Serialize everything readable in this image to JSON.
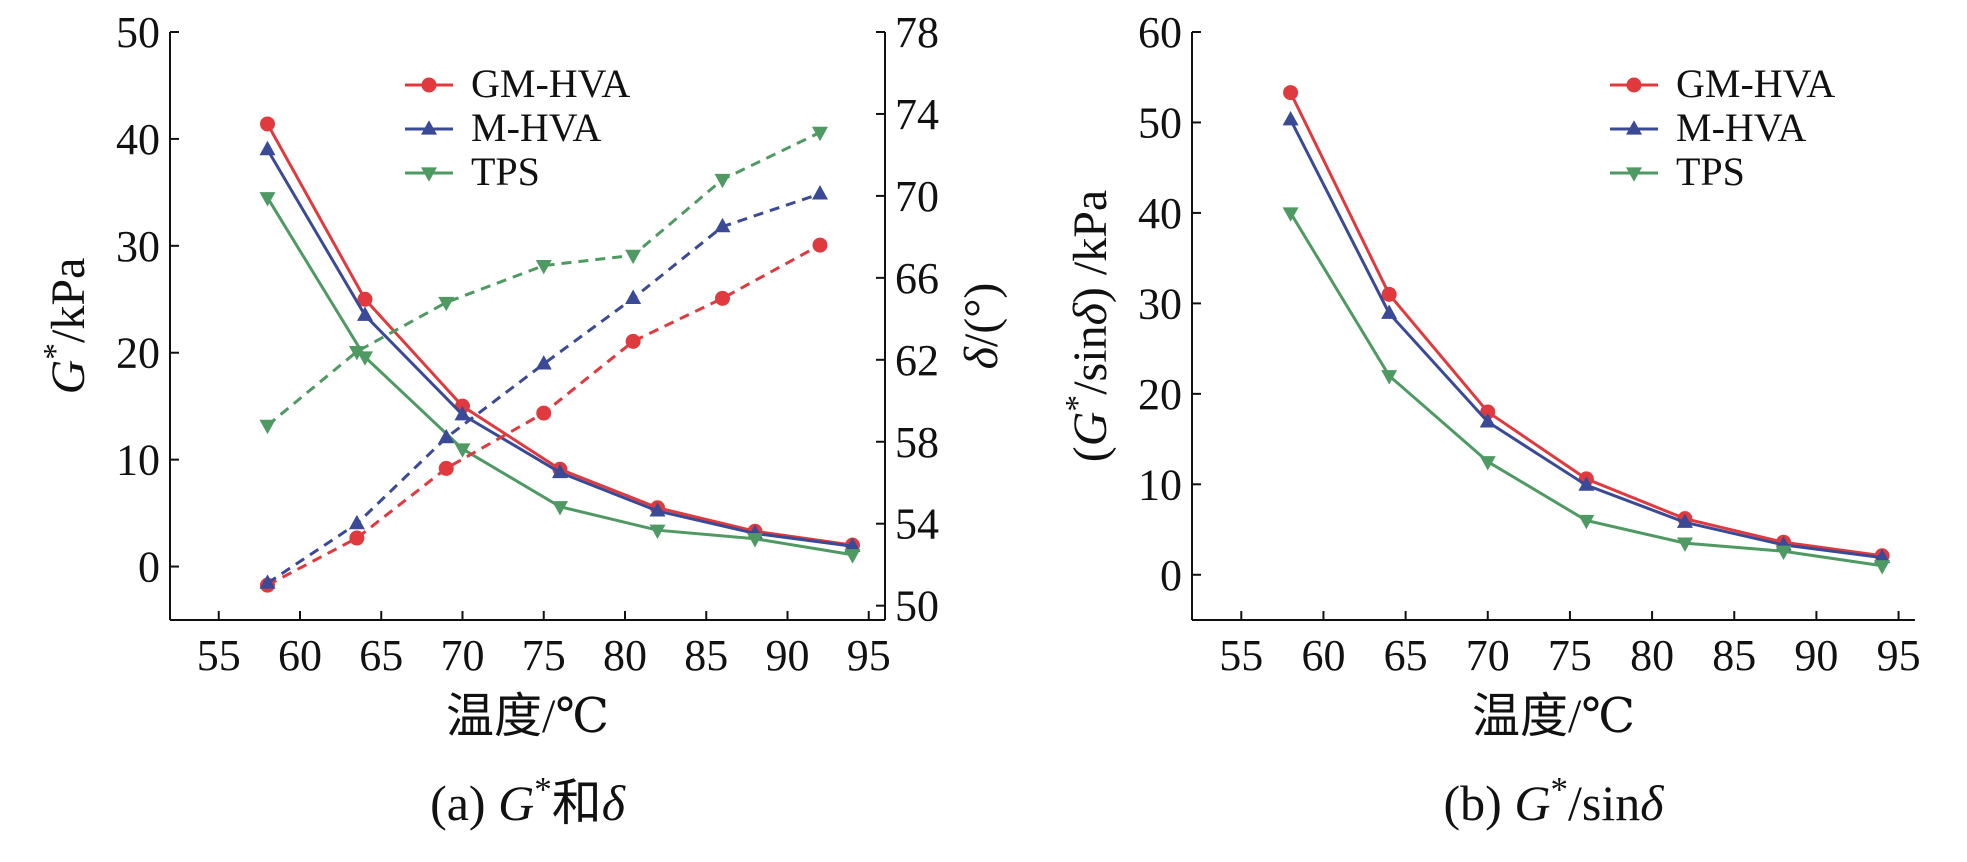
{
  "chart_data": [
    {
      "panel": "a",
      "type": "line",
      "caption": "(a) G*和δ",
      "xlabel": "温度/℃",
      "ylabel": "G*/kPa",
      "y2label": "δ/(°)",
      "xlim": [
        52,
        96
      ],
      "xticks": [
        55,
        60,
        65,
        70,
        75,
        80,
        85,
        90,
        95
      ],
      "ylim": [
        -5,
        50
      ],
      "yticks": [
        0,
        10,
        20,
        30,
        40,
        50
      ],
      "y2lim": [
        49.3,
        78
      ],
      "y2ticks": [
        50,
        54,
        58,
        62,
        66,
        70,
        74,
        78
      ],
      "legend_position": "top-center",
      "series": [
        {
          "name": "GM-HVA",
          "axis": "left",
          "marker": "circle",
          "color": "#e0393e",
          "style": "solid",
          "x": [
            58,
            64,
            70,
            76,
            82,
            88,
            94
          ],
          "values": [
            41.4,
            25.0,
            15.0,
            9.1,
            5.5,
            3.3,
            2.0
          ]
        },
        {
          "name": "M-HVA",
          "axis": "left",
          "marker": "triangle-up",
          "color": "#3a4a96",
          "style": "solid",
          "x": [
            58,
            64,
            70,
            76,
            82,
            88,
            94
          ],
          "values": [
            39.0,
            23.5,
            14.2,
            8.8,
            5.2,
            3.1,
            1.9
          ]
        },
        {
          "name": "TPS",
          "axis": "left",
          "marker": "triangle-down",
          "color": "#4e9a62",
          "style": "solid",
          "x": [
            58,
            64,
            70,
            76,
            82,
            88,
            94
          ],
          "values": [
            34.5,
            19.6,
            11.0,
            5.6,
            3.4,
            2.6,
            1.1
          ]
        },
        {
          "name": "",
          "axis": "right",
          "marker": "circle",
          "color": "#e0393e",
          "style": "dashed",
          "x": [
            58,
            63.5,
            69,
            75,
            80.5,
            86,
            92
          ],
          "values": [
            51.0,
            53.3,
            56.7,
            59.4,
            62.9,
            65.0,
            67.6
          ]
        },
        {
          "name": "",
          "axis": "right",
          "marker": "triangle-up",
          "color": "#3a4a96",
          "style": "dashed",
          "x": [
            58,
            63.5,
            69,
            75,
            80.5,
            86,
            92
          ],
          "values": [
            51.1,
            54.0,
            58.2,
            61.8,
            65.0,
            68.5,
            70.1
          ]
        },
        {
          "name": "",
          "axis": "right",
          "marker": "triangle-down",
          "color": "#4e9a62",
          "style": "dashed",
          "x": [
            58,
            63.5,
            69,
            75,
            80.5,
            86,
            92
          ],
          "values": [
            58.8,
            62.4,
            64.8,
            66.6,
            67.1,
            70.8,
            73.1
          ]
        }
      ]
    },
    {
      "panel": "b",
      "type": "line",
      "caption": "(b) G*/sinδ",
      "xlabel": "温度/℃",
      "ylabel": "(G*/sinδ) /kPa",
      "xlim": [
        52,
        96
      ],
      "xticks": [
        55,
        60,
        65,
        70,
        75,
        80,
        85,
        90,
        95
      ],
      "ylim": [
        -5,
        60
      ],
      "yticks": [
        0,
        10,
        20,
        30,
        40,
        50,
        60
      ],
      "legend_position": "top-right",
      "series": [
        {
          "name": "GM-HVA",
          "marker": "circle",
          "color": "#e0393e",
          "style": "solid",
          "x": [
            58,
            64,
            70,
            76,
            82,
            88,
            94
          ],
          "values": [
            53.3,
            31.0,
            18.0,
            10.6,
            6.2,
            3.6,
            2.1
          ]
        },
        {
          "name": "M-HVA",
          "marker": "triangle-up",
          "color": "#3a4a96",
          "style": "solid",
          "x": [
            58,
            64,
            70,
            76,
            82,
            88,
            94
          ],
          "values": [
            50.3,
            28.9,
            16.9,
            9.9,
            5.8,
            3.3,
            1.9
          ]
        },
        {
          "name": "TPS",
          "marker": "triangle-down",
          "color": "#4e9a62",
          "style": "solid",
          "x": [
            58,
            64,
            70,
            76,
            82,
            88,
            94
          ],
          "values": [
            40.0,
            22.0,
            12.5,
            6.0,
            3.5,
            2.6,
            1.0
          ]
        }
      ]
    }
  ]
}
